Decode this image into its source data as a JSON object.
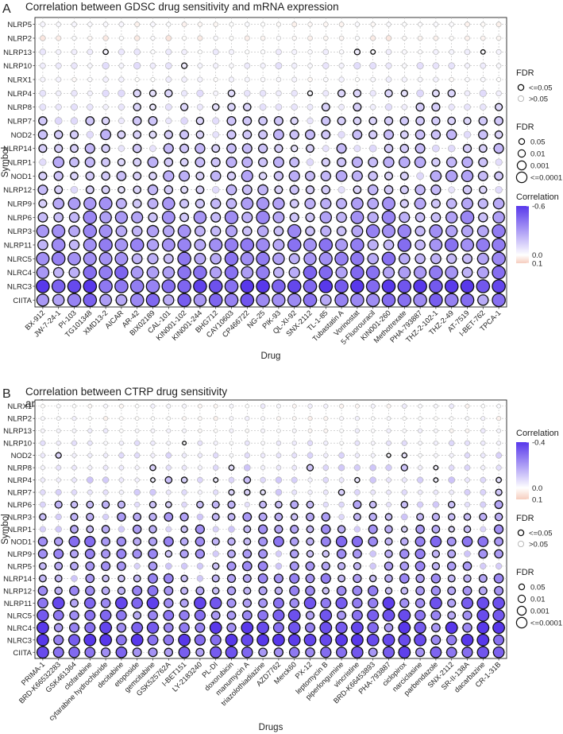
{
  "chart_data": [
    {
      "type": "bubble-heatmap",
      "panel_label": "A",
      "title": "Correlation between GDSC drug sensitivity and mRNA expression",
      "xlabel": "Drug",
      "ylabel": "Symbol",
      "rows": [
        "NLRP5",
        "NLRP2",
        "NLRP13",
        "NLRP10",
        "NLRX1",
        "NLRP4",
        "NLRP8",
        "NLRP7",
        "NOD2",
        "NLRP14",
        "NLRP1",
        "NOD1",
        "NLRP12",
        "NLRP9",
        "NLRP6",
        "NLRP3",
        "NLRP11",
        "NLRC5",
        "NLRC4",
        "NLRC3",
        "CIITA"
      ],
      "columns": [
        "BX-912",
        "JW-7-24-1",
        "PI-103",
        "TG101348",
        "XMD13-2",
        "AICAR",
        "AR-42",
        "BIX02189",
        "CAL-101",
        "KIN001-102",
        "KIN001-244",
        "BHG712",
        "CAY10603",
        "CP466722",
        "NG-25",
        "PIK-93",
        "QL-XI-92",
        "SNX-2112",
        "TL-1-85",
        "Tubastatin A",
        "Vorinostat",
        "5-Fluorouracil",
        "KIN001-260",
        "Methotrexate",
        "PHA-793887",
        "THZ-2-102-1",
        "THZ-2-49",
        "AT-7519",
        "I-BET-762",
        "TPCA-1"
      ],
      "row_mean_correlation": [
        0.0,
        0.02,
        -0.04,
        -0.06,
        -0.02,
        -0.08,
        -0.1,
        -0.12,
        -0.16,
        -0.15,
        -0.18,
        -0.2,
        -0.16,
        -0.24,
        -0.27,
        -0.3,
        -0.33,
        -0.32,
        -0.35,
        -0.55,
        -0.38
      ],
      "fdr_legend_title": "FDR",
      "significance_legend": [
        "<=0.05",
        ">0.05"
      ],
      "size_legend": [
        "0.05",
        "0.01",
        "0.001",
        "<=0.0001"
      ],
      "color_legend_title": "Correlation",
      "color_legend_ticks": [
        "-0.6",
        "0.0",
        "0.1"
      ],
      "color_range": [
        -0.6,
        0.1
      ]
    },
    {
      "type": "bubble-heatmap",
      "panel_label": "B",
      "title_lines": [
        "Correlation between CTRP drug sensitivity",
        "and mRNA expression"
      ],
      "xlabel": "Drugs",
      "ylabel": "Symbol",
      "rows": [
        "NLRX1",
        "NLRP2",
        "NLRP13",
        "NLRP10",
        "NOD2",
        "NLRP8",
        "NLRP4",
        "NLRP7",
        "NLRP6",
        "NLRP3",
        "NLRP1",
        "NOD1",
        "NLRP9",
        "NLRP5",
        "NLRP14",
        "NLRP12",
        "NLRP11",
        "NLRC5",
        "NLRC4",
        "NLRC3",
        "CIITA"
      ],
      "columns": [
        "PRIMA-1",
        "BRD-K66532283",
        "GSK461364",
        "clofarabine",
        "cytarabine hydrochloride",
        "decitabine",
        "etoposide",
        "gemcitabine",
        "GSK525762A",
        "I-BET151",
        "LY-2183240",
        "PL-DI",
        "doxorubicin",
        "manumycin A",
        "triazolothiadiazine",
        "AZD7762",
        "Merck60",
        "PX-12",
        "leptomycin B",
        "piperlongumine",
        "vincristine",
        "BRD-K66453893",
        "PHA-793887",
        "ciclopirox",
        "narciclasine",
        "parbendazole",
        "SNX-2112",
        "SR-II-138A",
        "dacarbazine",
        "CR-1-31B"
      ],
      "row_mean_correlation": [
        -0.01,
        0.0,
        -0.01,
        -0.04,
        -0.05,
        -0.07,
        -0.08,
        -0.07,
        -0.12,
        -0.14,
        -0.16,
        -0.22,
        -0.18,
        -0.17,
        -0.19,
        -0.2,
        -0.28,
        -0.26,
        -0.31,
        -0.36,
        -0.28
      ],
      "color_legend_title": "Correlation",
      "color_legend_ticks": [
        "-0.4",
        "0.0",
        "0.1"
      ],
      "color_range": [
        -0.4,
        0.1
      ],
      "fdr_legend_title": "FDR",
      "significance_legend": [
        "<=0.05",
        ">0.05"
      ],
      "size_legend": [
        "0.05",
        "0.01",
        "0.001",
        "<=0.0001"
      ]
    }
  ]
}
